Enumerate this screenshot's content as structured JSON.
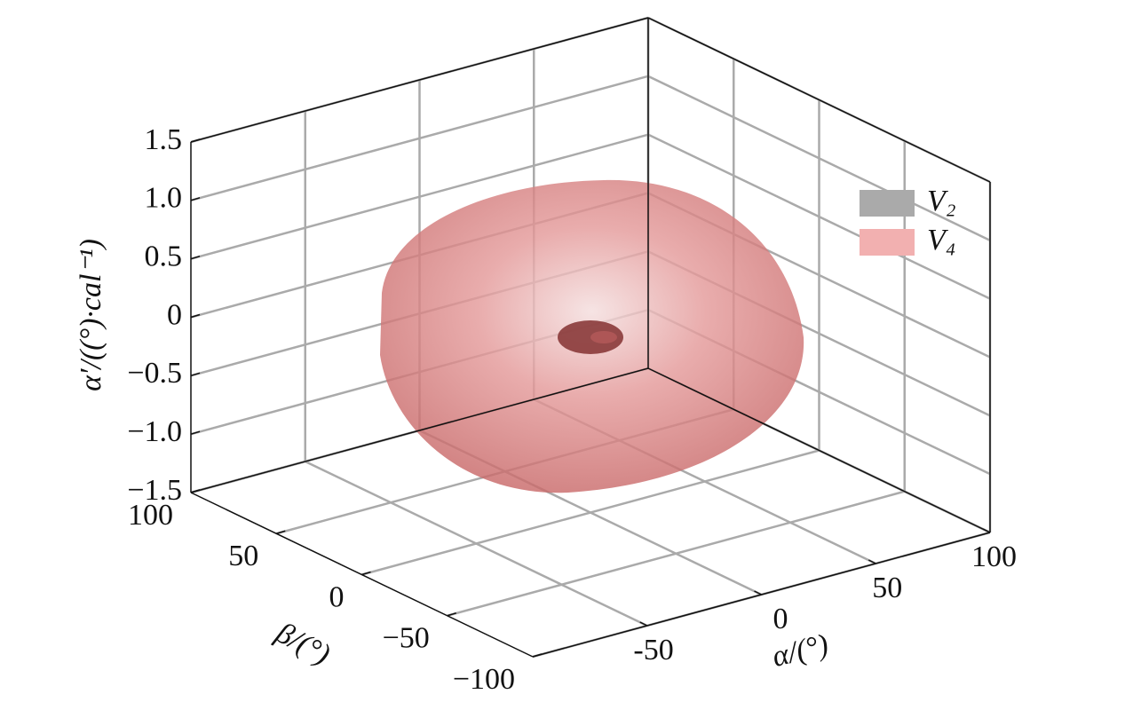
{
  "chart_data": {
    "type": "surface3d",
    "xlabel": "α/(°)",
    "ylabel": "β/(°)",
    "zlabel": "α′/((°)·cal⁻¹)",
    "xlim": [
      -100,
      100
    ],
    "xticks": [
      -50,
      0,
      50,
      100
    ],
    "ylim": [
      -100,
      100
    ],
    "yticks": [
      {
        "value": -100,
        "label": "−100"
      },
      {
        "value": -50,
        "label": "−50"
      },
      0,
      50,
      100
    ],
    "zlim": [
      -1.5,
      1.5
    ],
    "zticks": [
      {
        "value": -1.5,
        "label": "−1.5"
      },
      {
        "value": -1,
        "label": "−1.0"
      },
      {
        "value": -0.5,
        "label": "−0.5"
      },
      0,
      0.5,
      {
        "value": 1,
        "label": "1.0"
      },
      1.5
    ],
    "grid": true,
    "series": [
      {
        "name": "V₂",
        "color": "#aaaaaa"
      },
      {
        "name": "V₄",
        "color": "#f2b0b0"
      }
    ]
  }
}
